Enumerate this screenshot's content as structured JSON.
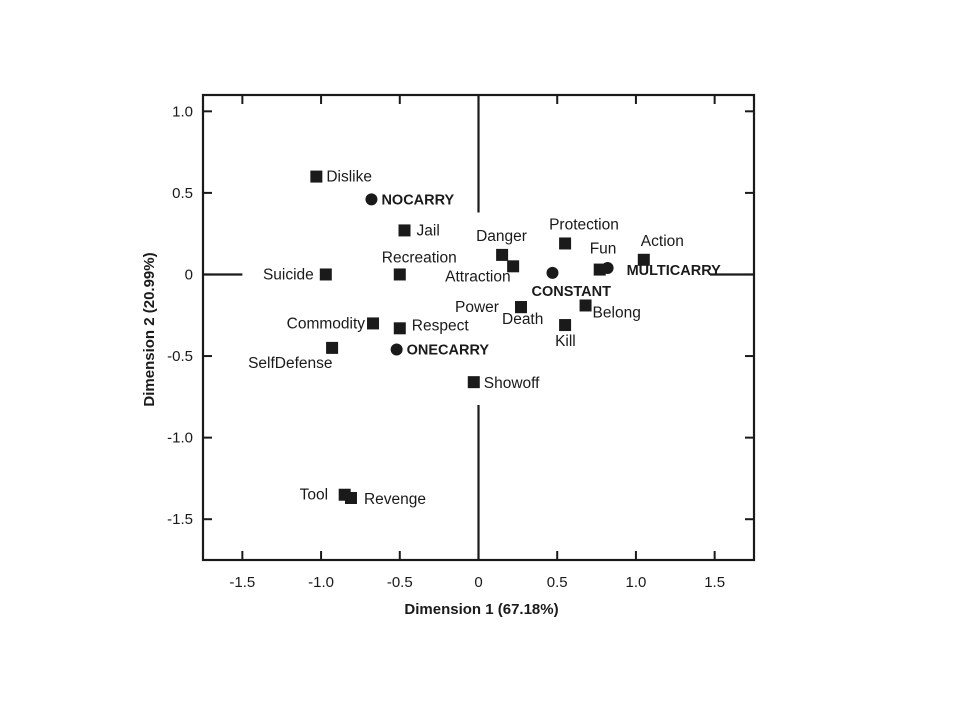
{
  "chart_data": {
    "type": "scatter",
    "xlabel": "Dimension 1 (67.18%)",
    "ylabel": "Dimension 2 (20.99%)",
    "xlim": [
      -1.75,
      1.75
    ],
    "ylim": [
      -1.75,
      1.1
    ],
    "xticks": [
      -1.5,
      -1.0,
      -0.5,
      0,
      0.5,
      1.0,
      1.5
    ],
    "xtick_labels": [
      "-1.5",
      "-1.0",
      "-0.5",
      "0",
      "0.5",
      "1.0",
      "1.5"
    ],
    "yticks": [
      1.0,
      0.5,
      0,
      -0.5,
      -1.0,
      -1.5
    ],
    "ytick_labels": [
      "1.0",
      "0.5",
      "0",
      "-0.5",
      "-1.0",
      "-1.5"
    ],
    "grid": false,
    "reference_lines": {
      "x": 0,
      "y": 0
    },
    "series": [
      {
        "marker": "square",
        "points": [
          {
            "label": "Dislike",
            "x": -1.03,
            "y": 0.6
          },
          {
            "label": "Jail",
            "x": -0.47,
            "y": 0.27
          },
          {
            "label": "Recreation",
            "x": -0.5,
            "y": 0.0
          },
          {
            "label": "Suicide",
            "x": -0.97,
            "y": 0.0
          },
          {
            "label": "Commodity",
            "x": -0.67,
            "y": -0.3
          },
          {
            "label": "Respect",
            "x": -0.5,
            "y": -0.33
          },
          {
            "label": "SelfDefense",
            "x": -0.93,
            "y": -0.45
          },
          {
            "label": "Danger",
            "x": 0.15,
            "y": 0.12
          },
          {
            "label": "Attraction",
            "x": 0.22,
            "y": 0.05
          },
          {
            "label": "Protection",
            "x": 0.55,
            "y": 0.19
          },
          {
            "label": "Fun",
            "x": 0.77,
            "y": 0.03
          },
          {
            "label": "Action",
            "x": 1.05,
            "y": 0.09
          },
          {
            "label": "Power",
            "x": 0.27,
            "y": -0.2
          },
          {
            "label": "Death",
            "x": 0.27,
            "y": -0.2
          },
          {
            "label": "Belong",
            "x": 0.68,
            "y": -0.19
          },
          {
            "label": "Kill",
            "x": 0.55,
            "y": -0.31
          },
          {
            "label": "Showoff",
            "x": -0.03,
            "y": -0.66
          },
          {
            "label": "Tool",
            "x": -0.85,
            "y": -1.35
          },
          {
            "label": "Revenge",
            "x": -0.81,
            "y": -1.37
          }
        ]
      },
      {
        "marker": "circle",
        "points": [
          {
            "label": "NOCARRY",
            "x": -0.68,
            "y": 0.46
          },
          {
            "label": "CONSTANT",
            "x": 0.47,
            "y": 0.01
          },
          {
            "label": "MULTICARRY",
            "x": 0.82,
            "y": 0.04
          },
          {
            "label": "ONECARRY",
            "x": -0.52,
            "y": -0.46
          }
        ]
      }
    ]
  },
  "colors": {
    "ink": "#1a1a1a",
    "background": "#ffffff"
  }
}
